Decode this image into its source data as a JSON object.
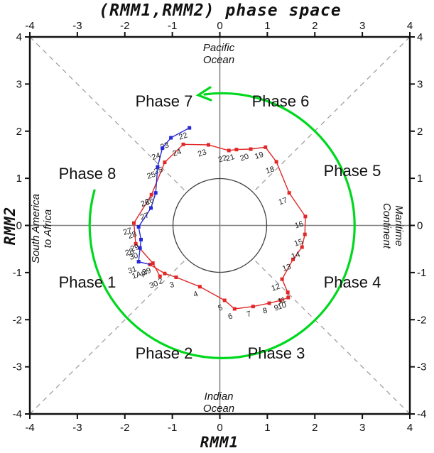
{
  "chart_data": {
    "type": "line",
    "title": "(RMM1,RMM2) phase space",
    "xlabel": "RMM1",
    "ylabel": "RMM2",
    "xlim": [
      -4,
      4
    ],
    "ylim": [
      -4,
      4
    ],
    "ticks": [
      -4,
      -3,
      -2,
      -1,
      0,
      1,
      2,
      3,
      4
    ],
    "unit_circle_radius": 1,
    "grid": "cross-and-diagonals",
    "phases": [
      {
        "label": "Phase 1"
      },
      {
        "label": "Phase 2"
      },
      {
        "label": "Phase 3"
      },
      {
        "label": "Phase 4"
      },
      {
        "label": "Phase 5"
      },
      {
        "label": "Phase 6"
      },
      {
        "label": "Phase 7"
      },
      {
        "label": "Phase 8"
      }
    ],
    "regions": {
      "top": {
        "line1": "Pacific",
        "line2": "Ocean"
      },
      "bottom": {
        "line1": "Indian",
        "line2": "Ocean"
      },
      "left": {
        "line1": "South America",
        "line2": "to Africa"
      },
      "right": {
        "line1": "Maritime",
        "line2": "Continent"
      }
    },
    "arrow": {
      "color": "#00d81e",
      "direction": "counterclockwise"
    },
    "series": [
      {
        "id": "red-track",
        "color": "#e02828",
        "points": [
          {
            "d": "1Apr",
            "x": -1.47,
            "y": -0.83
          },
          {
            "d": "2",
            "x": -1.16,
            "y": -1.02
          },
          {
            "d": "3",
            "x": -0.92,
            "y": -1.1
          },
          {
            "d": "4",
            "x": -0.42,
            "y": -1.3
          },
          {
            "d": "5",
            "x": 0.1,
            "y": -1.59
          },
          {
            "d": "6",
            "x": 0.31,
            "y": -1.77
          },
          {
            "d": "7",
            "x": 0.7,
            "y": -1.72
          },
          {
            "d": "8",
            "x": 1.04,
            "y": -1.65
          },
          {
            "d": "9",
            "x": 1.28,
            "y": -1.59
          },
          {
            "d": "10",
            "x": 1.44,
            "y": -1.53
          },
          {
            "d": "11",
            "x": 1.43,
            "y": -1.42
          },
          {
            "d": "12",
            "x": 1.31,
            "y": -1.14
          },
          {
            "d": "13",
            "x": 1.54,
            "y": -0.72
          },
          {
            "d": "14",
            "x": 1.73,
            "y": -0.46
          },
          {
            "d": "15",
            "x": 1.79,
            "y": -0.19
          },
          {
            "d": "16",
            "x": 1.8,
            "y": 0.19
          },
          {
            "d": "17",
            "x": 1.46,
            "y": 0.69
          },
          {
            "d": "18",
            "x": 1.19,
            "y": 1.35
          },
          {
            "d": "19",
            "x": 0.96,
            "y": 1.66
          },
          {
            "d": "20",
            "x": 0.65,
            "y": 1.62
          },
          {
            "d": "21",
            "x": 0.35,
            "y": 1.61
          },
          {
            "d": "22",
            "x": 0.19,
            "y": 1.59
          },
          {
            "d": "23",
            "x": -0.24,
            "y": 1.71
          },
          {
            "d": "24",
            "x": -0.77,
            "y": 1.72
          },
          {
            "d": "25",
            "x": -1.16,
            "y": 1.34
          },
          {
            "d": "26",
            "x": -1.44,
            "y": 0.65
          },
          {
            "d": "27",
            "x": -1.81,
            "y": 0.05
          },
          {
            "d": "28",
            "x": -1.77,
            "y": -0.39
          },
          {
            "d": "29",
            "x": -1.41,
            "y": -0.8
          },
          {
            "d": "30",
            "x": -1.26,
            "y": -1.08
          }
        ]
      },
      {
        "id": "blue-track",
        "color": "#2828d8",
        "points": [
          {
            "d": "22",
            "x": -0.64,
            "y": 2.07
          },
          {
            "d": "23",
            "x": -1.03,
            "y": 1.86
          },
          {
            "d": "24",
            "x": -1.21,
            "y": 1.64
          },
          {
            "d": "25",
            "x": -1.31,
            "y": 1.24
          },
          {
            "d": "26",
            "x": -1.35,
            "y": 0.69
          },
          {
            "d": "27",
            "x": -1.45,
            "y": 0.37
          },
          {
            "d": "28",
            "x": -1.71,
            "y": -0.03
          },
          {
            "d": "29",
            "x": -1.66,
            "y": -0.3
          },
          {
            "d": "30",
            "x": -1.68,
            "y": -0.48
          },
          {
            "d": "31",
            "x": -1.71,
            "y": -0.77
          },
          {
            "d": "",
            "x": -1.47,
            "y": -0.83
          }
        ]
      }
    ]
  }
}
